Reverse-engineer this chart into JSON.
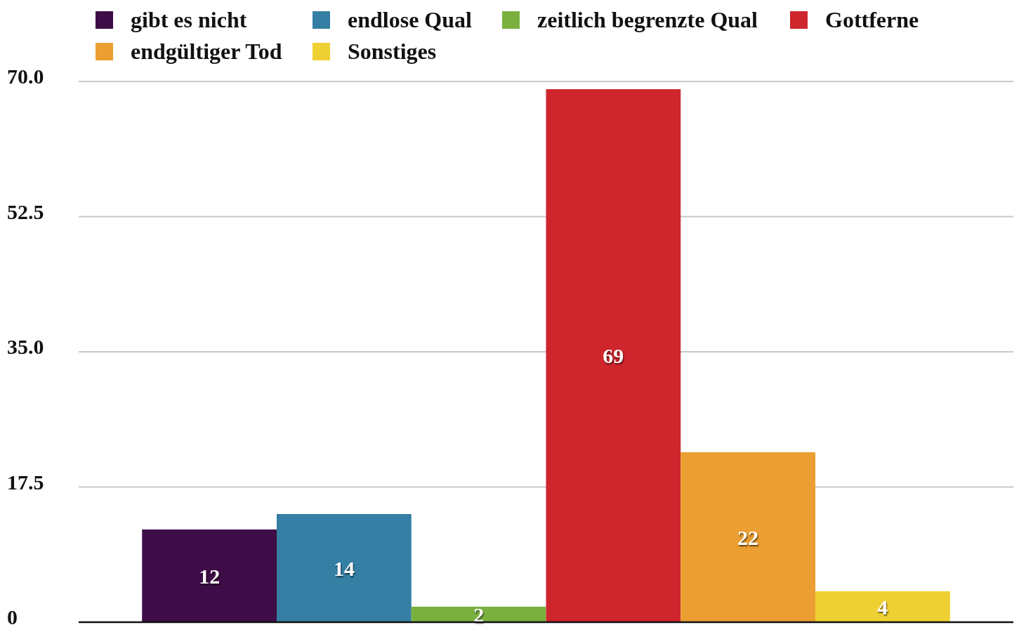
{
  "chart_data": {
    "type": "bar",
    "categories": [
      null
    ],
    "series": [
      {
        "name": "gibt es nicht",
        "color": "#3e0d47",
        "values": [
          12
        ]
      },
      {
        "name": "endlose Qual",
        "color": "#347fa3",
        "values": [
          14
        ]
      },
      {
        "name": "zeitlich begrenzte Qual",
        "color": "#7ab03e",
        "values": [
          2
        ]
      },
      {
        "name": "Gottferne",
        "color": "#cf252c",
        "values": [
          69
        ]
      },
      {
        "name": "endgültiger Tod",
        "color": "#eb9e31",
        "values": [
          22
        ]
      },
      {
        "name": "Sonstiges",
        "color": "#efd032",
        "values": [
          4
        ]
      }
    ],
    "ylim": [
      0,
      70
    ],
    "yticks": [
      0,
      {
        "value": 17.5,
        "label": "17.5"
      },
      {
        "value": 35,
        "label": "35.0"
      },
      {
        "value": 52.5,
        "label": "52.5"
      },
      {
        "value": 70,
        "label": "70.0"
      }
    ],
    "grid": "y",
    "legend": "top",
    "data_labels": true
  }
}
